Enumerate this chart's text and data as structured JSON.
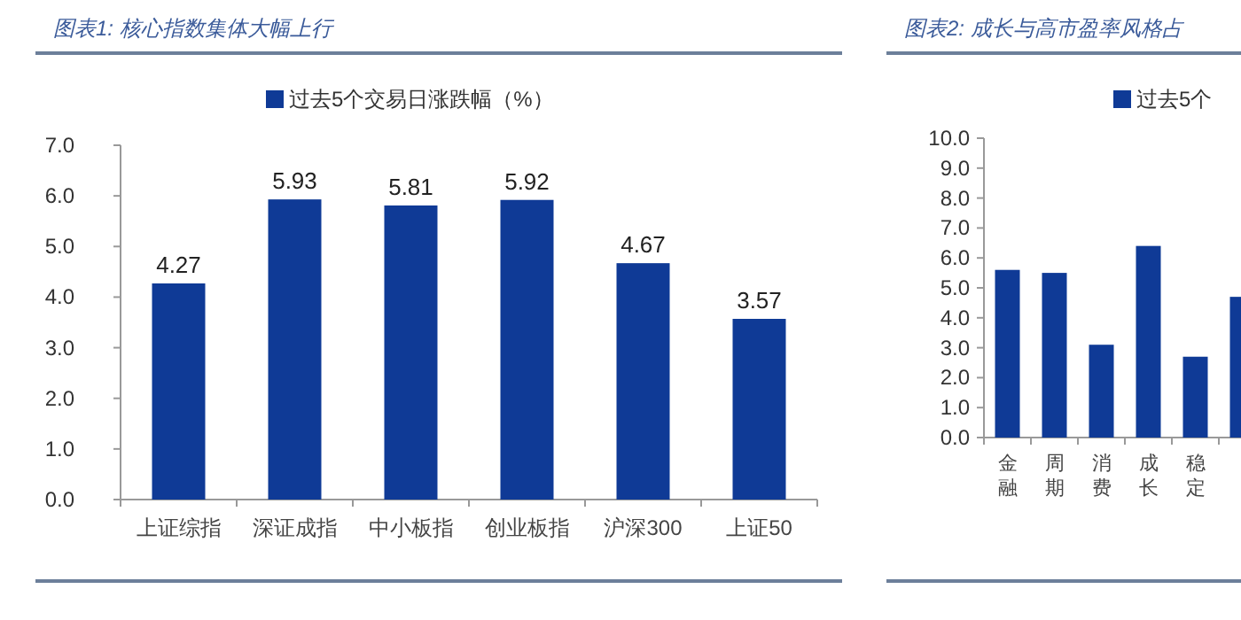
{
  "chart_data": [
    {
      "type": "bar",
      "title": "图表1:  核心指数集体大幅上行",
      "categories": [
        "上证综指",
        "深证成指",
        "中小板指",
        "创业板指",
        "沪深300",
        "上证50"
      ],
      "series": [
        {
          "name": "过去5个交易日涨跌幅（%）",
          "color": "#0f3a96",
          "values": [
            4.27,
            5.93,
            5.81,
            5.92,
            4.67,
            3.57
          ]
        }
      ],
      "ylim": [
        0,
        7
      ],
      "yticks": [
        {
          "value": 0,
          "label": "0.0"
        },
        {
          "value": 1,
          "label": "1.0"
        },
        {
          "value": 2,
          "label": "2.0"
        },
        {
          "value": 3,
          "label": "3.0"
        },
        {
          "value": 4,
          "label": "4.0"
        },
        {
          "value": 5,
          "label": "5.0"
        },
        {
          "value": 6,
          "label": "6.0"
        },
        {
          "value": 7,
          "label": "7.0"
        }
      ],
      "data_labels": true,
      "legend": "top",
      "grid": false
    },
    {
      "type": "bar",
      "title": "图表2:  成长与高市盈率风格占",
      "categories": [
        "金融",
        "周期",
        "消费",
        "成长",
        "稳定",
        null
      ],
      "series": [
        {
          "name": "过去5个",
          "color": "#0f3a96",
          "values": [
            5.6,
            5.5,
            3.1,
            6.4,
            2.7,
            4.7
          ]
        }
      ],
      "ylim": [
        0,
        10
      ],
      "yticks": [
        {
          "value": 0,
          "label": "0.0"
        },
        {
          "value": 1,
          "label": "1.0"
        },
        {
          "value": 2,
          "label": "2.0"
        },
        {
          "value": 3,
          "label": "3.0"
        },
        {
          "value": 4,
          "label": "4.0"
        },
        {
          "value": 5,
          "label": "5.0"
        },
        {
          "value": 6,
          "label": "6.0"
        },
        {
          "value": 7,
          "label": "7.0"
        },
        {
          "value": 8,
          "label": "8.0"
        },
        {
          "value": 9,
          "label": "9.0"
        },
        {
          "value": 10,
          "label": "10.0"
        }
      ],
      "legend": "top",
      "grid": false
    }
  ]
}
